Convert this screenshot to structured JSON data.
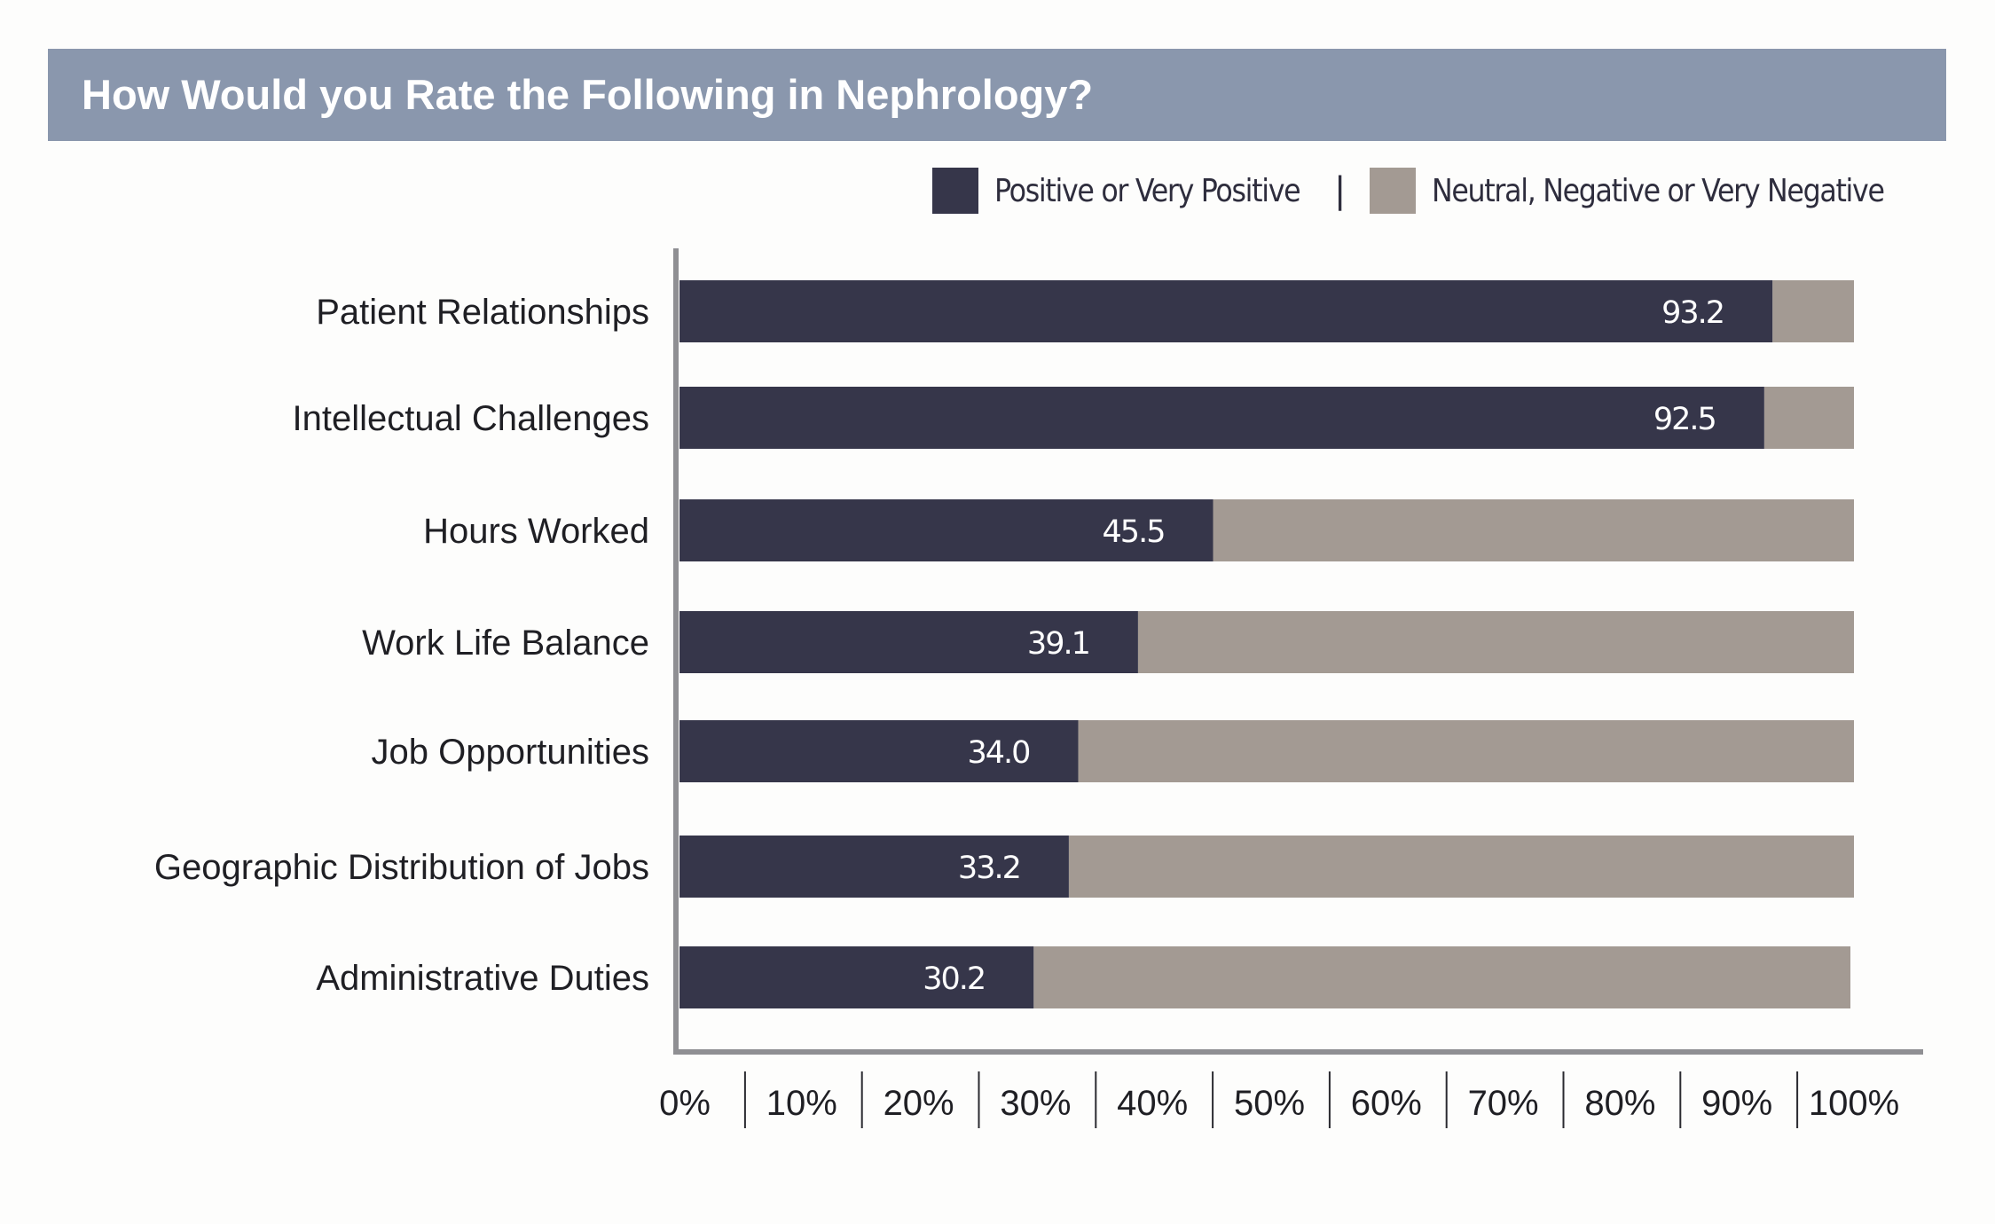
{
  "header": {
    "title": "How Would you Rate the Following in Nephrology?"
  },
  "legend": {
    "positive_label": "Positive or Very Positive",
    "separator": "|",
    "negative_label": "Neutral, Negative or Very Negative"
  },
  "colors": {
    "positive": "#36364a",
    "negative": "#a39a93",
    "title_bar": "#8a97ad",
    "axis": "#8f8f93"
  },
  "chart_data": {
    "type": "bar",
    "orientation": "horizontal",
    "stacked": true,
    "categories": [
      "Patient Relationships",
      "Intellectual Challenges",
      "Hours Worked",
      "Work Life Balance",
      "Job Opportunities",
      "Geographic Distribution of Jobs",
      "Administrative Duties"
    ],
    "series": [
      {
        "name": "Positive or Very Positive",
        "values": [
          93.2,
          92.5,
          45.5,
          39.1,
          34.0,
          33.2,
          30.2
        ],
        "labels": [
          "93.2",
          "92.5",
          "45.5",
          "39.1",
          "34.0",
          "33.2",
          "30.2"
        ]
      },
      {
        "name": "Neutral, Negative or Very Negative",
        "values": [
          6.8,
          7.5,
          54.5,
          60.9,
          66.0,
          66.8,
          69.8
        ]
      }
    ],
    "xlim": [
      0,
      100
    ],
    "x_ticks": [
      "0%",
      "10%",
      "20%",
      "30%",
      "40%",
      "50%",
      "60%",
      "70%",
      "80%",
      "90%",
      "100%"
    ],
    "grid": false,
    "legend_position": "top-right"
  }
}
